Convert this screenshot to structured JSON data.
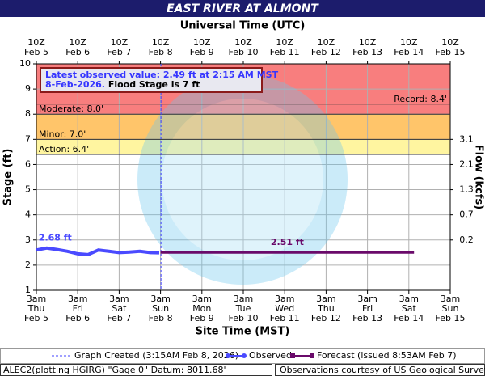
{
  "title": "EAST RIVER AT ALMONT",
  "top_axis_label": "Universal Time (UTC)",
  "bottom_axis_label": "Site Time (MST)",
  "footer": {
    "left": "ALEC2(plotting HGIRG) \"Gage 0\" Datum: 8011.68'",
    "right": "Observations courtesy of US Geological Survey"
  },
  "chart_data": {
    "type": "hydrograph",
    "ylabel": "Stage (ft)",
    "y2label": "Flow (kcfs)",
    "ylim": [
      1,
      10
    ],
    "yticks": [
      1,
      2,
      3,
      4,
      5,
      6,
      7,
      8,
      9,
      10
    ],
    "grid": true,
    "flow_ticks": [
      {
        "stage": 7,
        "flow": 3.1
      },
      {
        "stage": 6,
        "flow": 2.1
      },
      {
        "stage": 5,
        "flow": 1.3
      },
      {
        "stage": 4,
        "flow": 0.7
      },
      {
        "stage": 3,
        "flow": 0.2
      }
    ],
    "x_ticks": [
      {
        "utc": "10Z",
        "time": "3am",
        "weekday": "Thu",
        "date": "Feb 5"
      },
      {
        "utc": "10Z",
        "time": "3am",
        "weekday": "Fri",
        "date": "Feb 6"
      },
      {
        "utc": "10Z",
        "time": "3am",
        "weekday": "Sat",
        "date": "Feb 7"
      },
      {
        "utc": "10Z",
        "time": "3am",
        "weekday": "Sun",
        "date": "Feb 8"
      },
      {
        "utc": "10Z",
        "time": "3am",
        "weekday": "Mon",
        "date": "Feb 9"
      },
      {
        "utc": "10Z",
        "time": "3am",
        "weekday": "Tue",
        "date": "Feb 10"
      },
      {
        "utc": "10Z",
        "time": "3am",
        "weekday": "Wed",
        "date": "Feb 11"
      },
      {
        "utc": "10Z",
        "time": "3am",
        "weekday": "Thu",
        "date": "Feb 12"
      },
      {
        "utc": "10Z",
        "time": "3am",
        "weekday": "Fri",
        "date": "Feb 13"
      },
      {
        "utc": "10Z",
        "time": "3am",
        "weekday": "Sat",
        "date": "Feb 14"
      },
      {
        "utc": "10Z",
        "time": "3am",
        "weekday": "Sun",
        "date": "Feb 15"
      }
    ],
    "thresholds": [
      {
        "label": "Record: 8.4'",
        "value": 8.4,
        "color": "#333333"
      },
      {
        "label": "Moderate: 8.0'",
        "value": 8,
        "color": "#333333",
        "band_color": "#f87e7e"
      },
      {
        "label": "Minor: 7.0'",
        "value": 7,
        "color": "#333333",
        "band_color": "#ffc56a"
      },
      {
        "label": "Action: 6.4'",
        "value": 6.4,
        "color": "#333333",
        "band_color": "#fff5a0"
      }
    ],
    "annotation": [
      "Latest observed value: 2.49 ft at 2:15 AM MST",
      "8-Feb-2026.",
      "Flood Stage is 7 ft"
    ],
    "graph_created": {
      "x": "Feb 8 3:15am",
      "legend": "Graph Created (3:15AM Feb 8, 2026)",
      "color": "#4040ff"
    },
    "series": [
      {
        "name": "Observed",
        "color": "#4a4aff",
        "x": [
          "Feb 5 3am",
          "Feb 5 9am",
          "Feb 5 3pm",
          "Feb 5 9pm",
          "Feb 6 3am",
          "Feb 6 9am",
          "Feb 6 3pm",
          "Feb 6 9pm",
          "Feb 7 3am",
          "Feb 7 9am",
          "Feb 7 3pm",
          "Feb 7 9pm",
          "Feb 8 2:15am"
        ],
        "values": [
          2.6,
          2.68,
          2.62,
          2.55,
          2.45,
          2.42,
          2.6,
          2.55,
          2.5,
          2.52,
          2.55,
          2.5,
          2.49
        ],
        "value_labels": [
          null,
          "2.68 ft",
          null,
          null,
          null,
          null,
          null,
          null,
          null,
          null,
          null,
          null,
          null
        ]
      },
      {
        "name": "Forecast (issued 8:53AM Feb 7)",
        "color": "#6a0a6a",
        "x": [
          "Feb 8 3am",
          "Feb 14 6am"
        ],
        "values": [
          2.51,
          2.51
        ],
        "value_labels": [
          "2.51 ft",
          null
        ]
      }
    ]
  }
}
